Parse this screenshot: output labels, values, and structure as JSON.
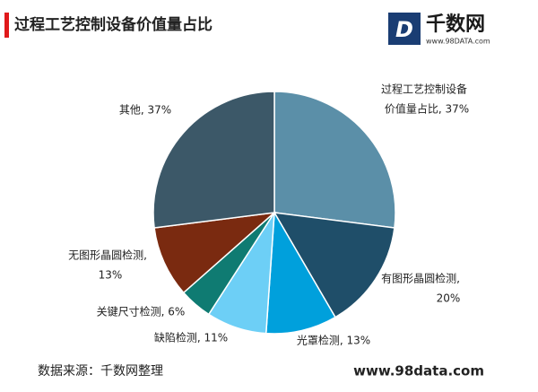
{
  "chart_data": {
    "type": "pie",
    "title": "过程工艺控制设备价值量占比",
    "labels": [
      [
        "过程工艺控制设备",
        "价值量占比, 37%"
      ],
      [
        "有图形晶圆检测,",
        "20%"
      ],
      [
        "光罩检测, 13%"
      ],
      [
        "缺陷检测, 11%"
      ],
      [
        "关键尺寸检测, 6%"
      ],
      [
        "无图形晶圆检测,",
        "13%"
      ],
      [
        "其他, 37%"
      ]
    ],
    "values": [
      37,
      20,
      13,
      11,
      6,
      13,
      37
    ],
    "colors": [
      "#5b8fa8",
      "#1f4e69",
      "#00a0dc",
      "#6dcff6",
      "#0f7b72",
      "#7a2a10",
      "#3c5868"
    ],
    "source": "数据来源：千数网整理",
    "website": "www.98data.com"
  },
  "logo": {
    "name": "千数网",
    "url": "www.98DATA.com"
  }
}
